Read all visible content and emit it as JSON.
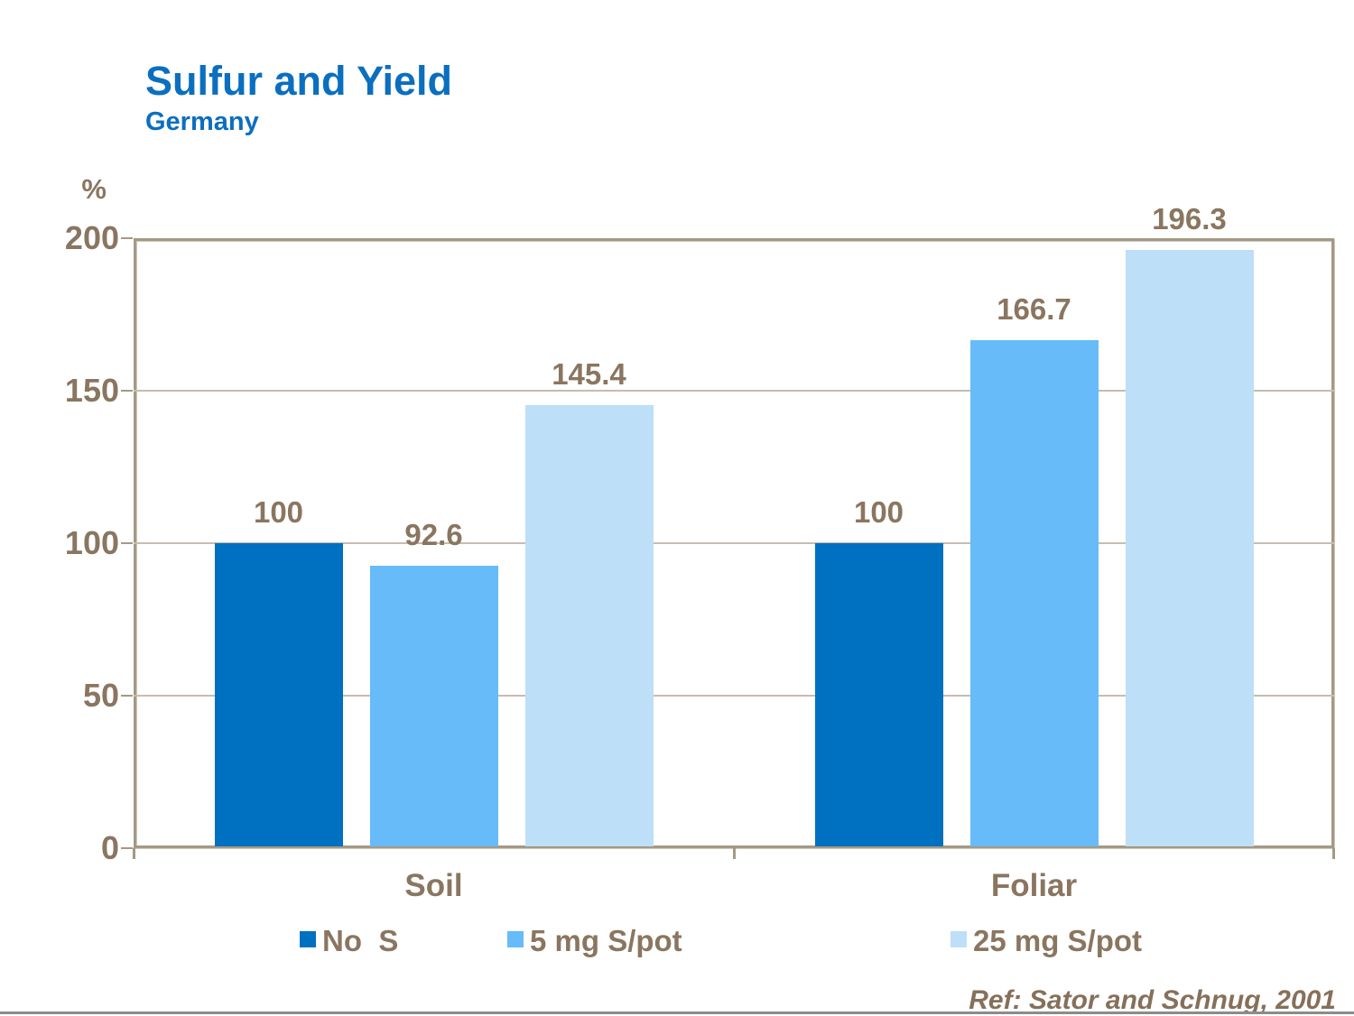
{
  "slide": {
    "title": "Sulfur and Yield",
    "subtitle": "Germany",
    "ref": "Ref: Sator and Schnug, 2001"
  },
  "chart_data": {
    "type": "bar",
    "title": "Sulfur and Yield",
    "subtitle": "Germany",
    "unit_label": "%",
    "ylabel": "%",
    "xlabel": "",
    "ylim": [
      0,
      200
    ],
    "yticks": [
      0,
      50,
      100,
      150,
      200
    ],
    "grid": true,
    "legend_position": "bottom",
    "categories": [
      "Soil",
      "Foliar"
    ],
    "series": [
      {
        "name": "No  S",
        "color": "#0070C0",
        "values": [
          100,
          100
        ]
      },
      {
        "name": "5 mg S/pot",
        "color": "#66BBF8",
        "values": [
          92.6,
          166.7
        ]
      },
      {
        "name": "25 mg S/pot",
        "color": "#BDDFF8",
        "values": [
          145.4,
          196.3
        ]
      }
    ],
    "value_labels": [
      [
        "100",
        "92.6",
        "145.4"
      ],
      [
        "100",
        "166.7",
        "196.3"
      ]
    ]
  },
  "theme": {
    "title_color": "#0B6FBF",
    "axis_text_color": "#8A7660",
    "axis_line_color": "#A49986",
    "gridline_color": "#C6BDB0",
    "ref_text_color": "#86705A",
    "bottom_rule_color": "#8C8C8C"
  }
}
